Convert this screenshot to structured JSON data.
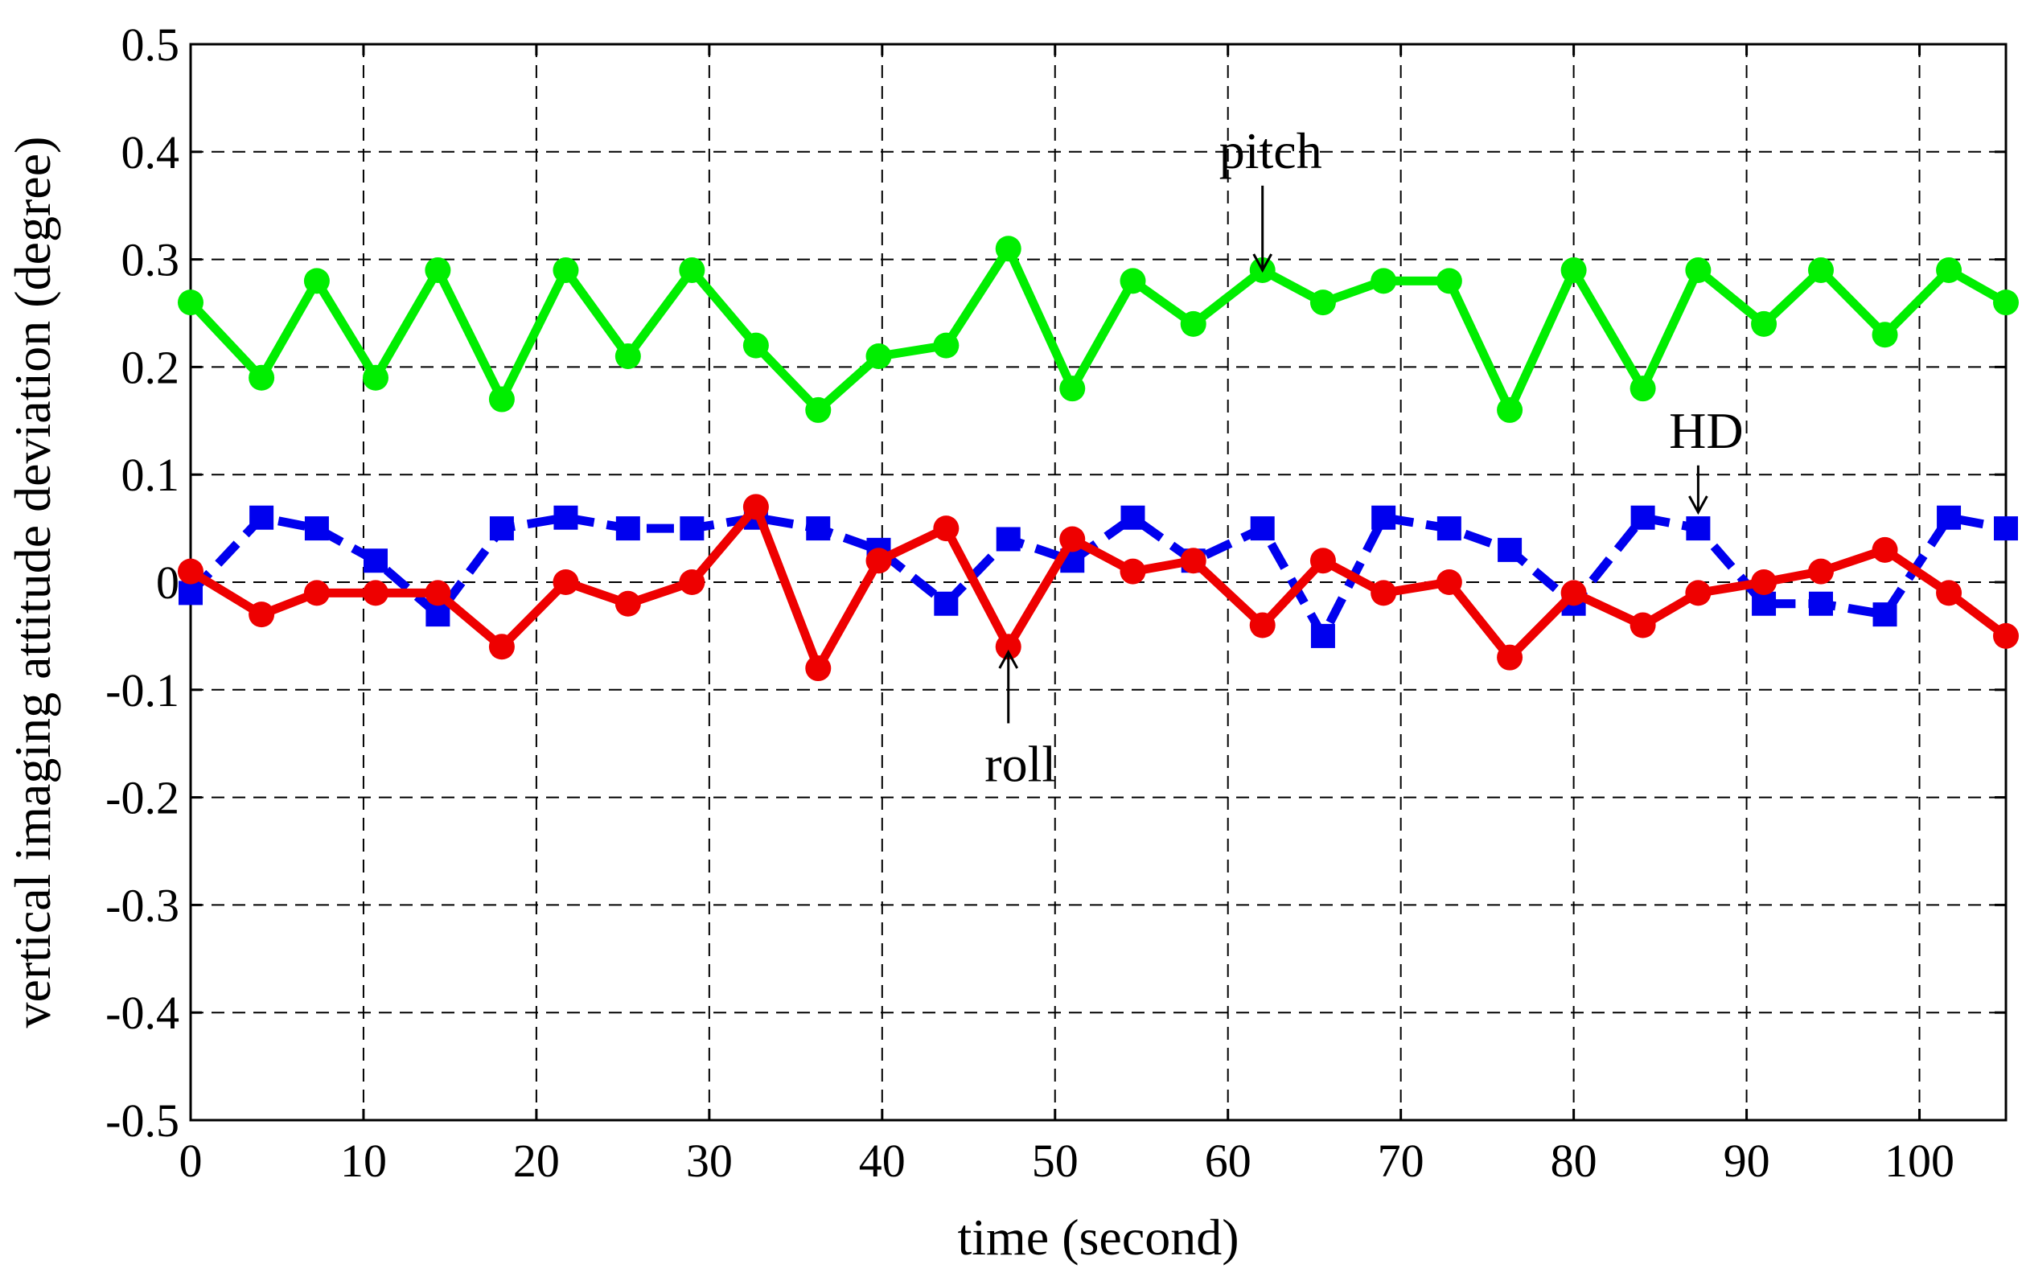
{
  "chart_data": {
    "type": "line",
    "title": "",
    "xlabel": "time (second)",
    "ylabel": "vertical imaging attitude deviation (degree)",
    "xlim": [
      0,
      105
    ],
    "ylim": [
      -0.5,
      0.5
    ],
    "grid": true,
    "xticks": [
      0,
      10,
      20,
      30,
      40,
      50,
      60,
      70,
      80,
      90,
      100
    ],
    "xtick_labels": [
      "0",
      "10",
      "20",
      "30",
      "40",
      "50",
      "60",
      "70",
      "80",
      "90",
      "100"
    ],
    "yticks": [
      0.5,
      0.4,
      0.3,
      0.2,
      0.1,
      0,
      -0.1,
      -0.2,
      -0.3,
      -0.4,
      -0.5
    ],
    "ytick_labels": [
      "0.5",
      "0.4",
      "0.3",
      "0.2",
      "0.1",
      "0",
      "-0.1",
      "-0.2",
      "-0.3",
      "-0.4",
      "-0.5"
    ],
    "x": [
      0,
      4.1,
      7.3,
      10.7,
      14.3,
      18.0,
      21.7,
      25.3,
      29.0,
      32.7,
      36.3,
      39.8,
      43.7,
      47.3,
      51.0,
      54.5,
      58.0,
      62.0,
      65.5,
      69.0,
      72.8,
      76.3,
      80.0,
      84.0,
      87.2,
      91.0,
      94.3,
      98.0,
      101.7,
      105.0
    ],
    "series": [
      {
        "name": "pitch",
        "color": "#00ee00",
        "marker": "circle",
        "line_style": "solid",
        "values": [
          0.26,
          0.19,
          0.28,
          0.19,
          0.29,
          0.17,
          0.29,
          0.21,
          0.29,
          0.22,
          0.16,
          0.21,
          0.22,
          0.31,
          0.18,
          0.28,
          0.24,
          0.29,
          0.26,
          0.28,
          0.28,
          0.16,
          0.29,
          0.18,
          0.29,
          0.24,
          0.29,
          0.23,
          0.29,
          0.26
        ]
      },
      {
        "name": "HD",
        "color": "#0000ee",
        "marker": "square",
        "line_style": "dashed",
        "values": [
          -0.01,
          0.06,
          0.05,
          0.02,
          -0.03,
          0.05,
          0.06,
          0.05,
          0.05,
          0.06,
          0.05,
          0.03,
          -0.02,
          0.04,
          0.02,
          0.06,
          0.02,
          0.05,
          -0.05,
          0.06,
          0.05,
          0.03,
          -0.02,
          0.06,
          0.05,
          -0.02,
          -0.02,
          -0.03,
          0.06,
          0.05
        ]
      },
      {
        "name": "roll",
        "color": "#ee0000",
        "marker": "circle",
        "line_style": "solid",
        "values": [
          0.01,
          -0.03,
          -0.01,
          -0.01,
          -0.01,
          -0.06,
          0.0,
          -0.02,
          0.0,
          0.07,
          -0.08,
          0.02,
          0.05,
          -0.06,
          0.04,
          0.01,
          0.02,
          -0.04,
          0.02,
          -0.01,
          0.0,
          -0.07,
          -0.01,
          -0.04,
          -0.01,
          0.0,
          0.01,
          0.03,
          -0.01,
          -0.05
        ]
      }
    ],
    "annotations": [
      {
        "text": "pitch",
        "target_x": 62.0,
        "target_y": 0.29,
        "label_x": 62.0,
        "label_y": 0.385
      },
      {
        "text": "HD",
        "target_x": 87.2,
        "target_y": 0.065,
        "label_x": 87.2,
        "label_y": 0.125
      },
      {
        "text": "roll",
        "target_x": 47.3,
        "target_y": -0.065,
        "label_x": 47.3,
        "label_y": -0.185
      }
    ]
  }
}
